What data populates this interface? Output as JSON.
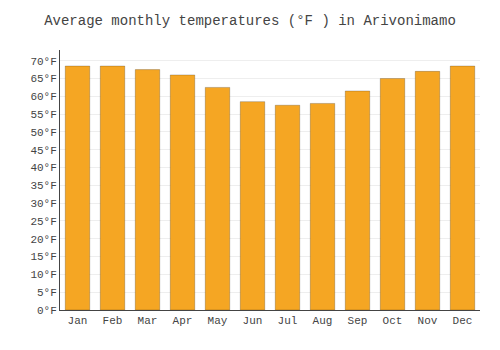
{
  "chart_data": {
    "type": "bar",
    "title": "Average monthly temperatures (°F ) in Arivonimamo",
    "categories": [
      "Jan",
      "Feb",
      "Mar",
      "Apr",
      "May",
      "Jun",
      "Jul",
      "Aug",
      "Sep",
      "Oct",
      "Nov",
      "Dec"
    ],
    "values": [
      68.5,
      68.5,
      67.5,
      66.0,
      62.5,
      58.5,
      57.5,
      58.0,
      61.5,
      65.0,
      67.0,
      68.5
    ],
    "color": "#F5A623",
    "ylim": [
      0,
      73
    ],
    "yticks": [
      {
        "value": 0,
        "label": "0°F"
      },
      {
        "value": 5,
        "label": "5°F"
      },
      {
        "value": 10,
        "label": "10°F"
      },
      {
        "value": 15,
        "label": "15°F"
      },
      {
        "value": 20,
        "label": "20°F"
      },
      {
        "value": 25,
        "label": "25°F"
      },
      {
        "value": 30,
        "label": "30°F"
      },
      {
        "value": 35,
        "label": "35°F"
      },
      {
        "value": 40,
        "label": "40°F"
      },
      {
        "value": 45,
        "label": "45°F"
      },
      {
        "value": 50,
        "label": "50°F"
      },
      {
        "value": 55,
        "label": "55°F"
      },
      {
        "value": 60,
        "label": "60°F"
      },
      {
        "value": 65,
        "label": "65°F"
      },
      {
        "value": 70,
        "label": "70°F"
      }
    ],
    "grid": true
  }
}
